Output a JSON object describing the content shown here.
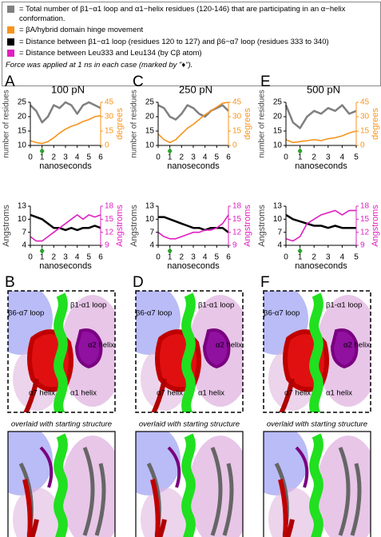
{
  "legend": {
    "items": [
      {
        "text": "= Total number of β1−α1 loop and α1−helix residues (120-146) that are participating in an α−helix conformation.",
        "color": "#808080"
      },
      {
        "text": "= βA/hybrid domain hinge movement",
        "color": "#f7941d"
      },
      {
        "text": "= Distance between β1−α1 loop (residues 120 to 127) and β6−α7 loop (residues 333 to 340)",
        "color": "#000000"
      },
      {
        "text": "= Distance between Leu333 and Leu134 (by Cβ atom)",
        "color": "#e020c0"
      }
    ],
    "note": "Force was applied at 1 ns in each case (marked by \"♦\")."
  },
  "chart_data": [
    {
      "type": "line",
      "panel": "A",
      "title": "100 pN",
      "x": [
        0,
        0.5,
        1,
        1.5,
        2,
        2.5,
        3,
        3.5,
        4,
        4.5,
        5,
        5.5,
        6
      ],
      "xlabel": "nanoseconds",
      "ylabel": "number of residues",
      "y2label": "degrees",
      "xlim": [
        0,
        6
      ],
      "xticks": [
        0,
        1,
        2,
        3,
        4,
        5,
        6
      ],
      "ylim": [
        10,
        25
      ],
      "yticks": [
        10,
        15,
        20,
        25
      ],
      "y2lim": [
        0,
        45
      ],
      "y2ticks": [
        0,
        15,
        30,
        45
      ],
      "marker_x": 1,
      "marker_color": "#2ca02c",
      "series": [
        {
          "name": "residues",
          "color": "#808080",
          "values": [
            24,
            22,
            18,
            20,
            24,
            23,
            25,
            24,
            21,
            24,
            25,
            24,
            23
          ]
        },
        {
          "name": "degrees",
          "color": "#f7941d",
          "axis": "y2",
          "values": [
            5,
            3,
            2,
            4,
            8,
            13,
            17,
            20,
            22,
            25,
            27,
            30,
            31
          ]
        }
      ]
    },
    {
      "type": "line",
      "x": [
        0,
        0.5,
        1,
        1.5,
        2,
        2.5,
        3,
        3.5,
        4,
        4.5,
        5,
        5.5,
        6
      ],
      "xlabel": "nanoseconds",
      "ylabel": "Angstroms",
      "y2label": "Angstroms",
      "xlim": [
        0,
        6
      ],
      "xticks": [
        0,
        1,
        2,
        3,
        4,
        5,
        6
      ],
      "ylim": [
        4,
        13
      ],
      "yticks": [
        4,
        7,
        10,
        13
      ],
      "y2lim": [
        9,
        18
      ],
      "y2ticks": [
        9,
        12,
        15,
        18
      ],
      "marker_x": 1,
      "marker_color": "#2ca02c",
      "series": [
        {
          "name": "β1−α1 to β6−α7",
          "color": "#000000",
          "values": [
            11,
            10.5,
            10,
            9,
            8,
            8,
            7.5,
            8,
            7.5,
            8,
            8,
            8.5,
            8
          ]
        },
        {
          "name": "Leu333 to Leu134",
          "color": "#e020c0",
          "axis": "y2",
          "values": [
            11,
            10,
            10,
            11,
            12,
            13,
            14,
            15,
            16,
            15,
            16,
            15.5,
            16
          ]
        }
      ]
    },
    {
      "type": "line",
      "panel": "C",
      "title": "250 pN",
      "x": [
        0,
        0.5,
        1,
        1.5,
        2,
        2.5,
        3,
        3.5,
        4,
        4.5,
        5,
        5.5,
        6
      ],
      "xlabel": "nanoseconds",
      "ylabel": "number of residues",
      "y2label": "degrees",
      "xlim": [
        0,
        6
      ],
      "xticks": [
        0,
        1,
        2,
        3,
        4,
        5,
        6
      ],
      "ylim": [
        10,
        25
      ],
      "yticks": [
        10,
        15,
        20,
        25
      ],
      "y2lim": [
        0,
        45
      ],
      "y2ticks": [
        0,
        15,
        30,
        45
      ],
      "marker_x": 1,
      "marker_color": "#2ca02c",
      "series": [
        {
          "name": "residues",
          "color": "#808080",
          "values": [
            24,
            23,
            20,
            19,
            21,
            24,
            23,
            21,
            20,
            22,
            23,
            24,
            22
          ]
        },
        {
          "name": "degrees",
          "color": "#f7941d",
          "axis": "y2",
          "values": [
            12,
            6,
            3,
            6,
            12,
            18,
            22,
            27,
            32,
            36,
            40,
            44,
            45
          ]
        }
      ]
    },
    {
      "type": "line",
      "x": [
        0,
        0.5,
        1,
        1.5,
        2,
        2.5,
        3,
        3.5,
        4,
        4.5,
        5,
        5.5,
        6
      ],
      "xlabel": "nanoseconds",
      "ylabel": "Angstroms",
      "y2label": "Angstroms",
      "xlim": [
        0,
        6
      ],
      "xticks": [
        0,
        1,
        2,
        3,
        4,
        5,
        6
      ],
      "ylim": [
        4,
        13
      ],
      "yticks": [
        4,
        7,
        10,
        13
      ],
      "y2lim": [
        9,
        18
      ],
      "y2ticks": [
        9,
        12,
        15,
        18
      ],
      "marker_x": 1,
      "marker_color": "#2ca02c",
      "series": [
        {
          "name": "β1−α1 to β6−α7",
          "color": "#000000",
          "values": [
            10.5,
            10.5,
            10,
            9.5,
            9,
            8.5,
            8,
            8,
            7.5,
            8,
            8,
            8,
            7
          ]
        },
        {
          "name": "Leu333 to Leu134",
          "color": "#e020c0",
          "axis": "y2",
          "values": [
            12,
            11,
            10.5,
            10.5,
            11,
            11.5,
            12,
            12,
            12.5,
            12.5,
            13,
            14,
            16
          ]
        }
      ]
    },
    {
      "type": "line",
      "panel": "E",
      "title": "500 pN",
      "x": [
        0,
        0.5,
        1,
        1.5,
        2,
        2.5,
        3,
        3.5,
        4,
        4.5,
        5
      ],
      "xlabel": "nanoseconds",
      "ylabel": "number of residues",
      "y2label": "degrees",
      "xlim": [
        0,
        5
      ],
      "xticks": [
        0,
        1,
        2,
        3,
        4,
        5
      ],
      "ylim": [
        10,
        25
      ],
      "yticks": [
        10,
        15,
        20,
        25
      ],
      "y2lim": [
        0,
        45
      ],
      "y2ticks": [
        0,
        15,
        30,
        45
      ],
      "marker_x": 1,
      "marker_color": "#2ca02c",
      "series": [
        {
          "name": "residues",
          "color": "#808080",
          "values": [
            24,
            18,
            16,
            20,
            22,
            21,
            23,
            22,
            24,
            21,
            22
          ]
        },
        {
          "name": "degrees",
          "color": "#f7941d",
          "axis": "y2",
          "values": [
            6,
            3,
            4,
            5,
            6,
            5,
            7,
            8,
            10,
            13,
            15
          ]
        }
      ]
    },
    {
      "type": "line",
      "x": [
        0,
        0.5,
        1,
        1.5,
        2,
        2.5,
        3,
        3.5,
        4,
        4.5,
        5
      ],
      "xlabel": "nanoseconds",
      "ylabel": "Angstroms",
      "y2label": "Angstroms",
      "xlim": [
        0,
        5
      ],
      "xticks": [
        0,
        1,
        2,
        3,
        4,
        5
      ],
      "ylim": [
        4,
        13
      ],
      "yticks": [
        4,
        7,
        10,
        13
      ],
      "y2lim": [
        9,
        18
      ],
      "y2ticks": [
        9,
        12,
        15,
        18
      ],
      "marker_x": 1,
      "marker_color": "#2ca02c",
      "series": [
        {
          "name": "β1−α1 to β6−α7",
          "color": "#000000",
          "values": [
            11,
            10,
            9.5,
            9,
            8.5,
            8.5,
            8,
            8.5,
            8,
            8,
            8
          ]
        },
        {
          "name": "Leu333 to Leu134",
          "color": "#e020c0",
          "axis": "y2",
          "values": [
            10.5,
            10,
            11,
            14,
            15,
            16,
            16.5,
            17,
            16,
            17,
            17
          ]
        }
      ]
    }
  ],
  "structures": [
    {
      "panel": "B",
      "labels": [
        "β6-α7 loop",
        "β1-α1 loop",
        "α2 helix",
        "α7 helix",
        "α1 helix"
      ],
      "caption": "overlaid with starting structure"
    },
    {
      "panel": "D",
      "labels": [
        "β6-α7 loop",
        "β1-α1 loop",
        "α2 helix",
        "α7 helix",
        "α1 helix"
      ],
      "caption": "overlaid with starting structure"
    },
    {
      "panel": "F",
      "labels": [
        "β6-α7 loop",
        "β1-α1 loop",
        "α2 helix",
        "α7 helix",
        "α1 helix"
      ],
      "caption": "overlaid with starting structure"
    }
  ]
}
